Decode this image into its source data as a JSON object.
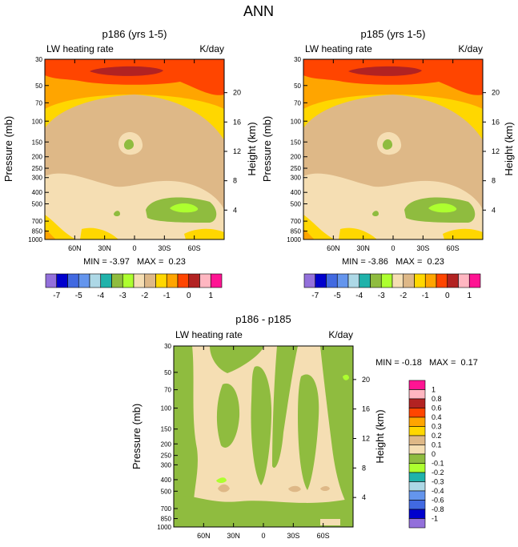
{
  "page_title": "ANN",
  "chart_data": [
    {
      "type": "heatmap",
      "title": "p186 (yrs 1-5)",
      "subtitle_left": "LW heating rate",
      "subtitle_right": "K/day",
      "ylabel": "Pressure (mb)",
      "y2label": "Height (km)",
      "x_ticks": [
        "60N",
        "30N",
        "0",
        "30S",
        "60S"
      ],
      "x_tick_values": [
        60,
        30,
        0,
        -30,
        -60
      ],
      "xlim": [
        90,
        -90
      ],
      "y_ticks": [
        "30",
        "50",
        "70",
        "100",
        "150",
        "200",
        "250",
        "300",
        "400",
        "500",
        "700",
        "850",
        "1000"
      ],
      "y_tick_values": [
        30,
        50,
        70,
        100,
        150,
        200,
        250,
        300,
        400,
        500,
        700,
        850,
        1000
      ],
      "ylim": [
        1000,
        30
      ],
      "height_ticks": [
        "20",
        "16",
        "12",
        "8",
        "4"
      ],
      "height_tick_values": [
        20,
        16,
        12,
        8,
        4
      ],
      "stats_text": "MIN = -3.97   MAX =  0.23",
      "min": -3.97,
      "max": 0.23
    },
    {
      "type": "heatmap",
      "title": "p185 (yrs 1-5)",
      "subtitle_left": "LW heating rate",
      "subtitle_right": "K/day",
      "ylabel": "Pressure (mb)",
      "y2label": "Height (km)",
      "x_ticks": [
        "60N",
        "30N",
        "0",
        "30S",
        "60S"
      ],
      "x_tick_values": [
        60,
        30,
        0,
        -30,
        -60
      ],
      "xlim": [
        90,
        -90
      ],
      "y_ticks": [
        "30",
        "50",
        "70",
        "100",
        "150",
        "200",
        "250",
        "300",
        "400",
        "500",
        "700",
        "850",
        "1000"
      ],
      "y_tick_values": [
        30,
        50,
        70,
        100,
        150,
        200,
        250,
        300,
        400,
        500,
        700,
        850,
        1000
      ],
      "ylim": [
        1000,
        30
      ],
      "height_ticks": [
        "20",
        "16",
        "12",
        "8",
        "4"
      ],
      "height_tick_values": [
        20,
        16,
        12,
        8,
        4
      ],
      "stats_text": "MIN = -3.86   MAX =  0.23",
      "min": -3.86,
      "max": 0.23
    },
    {
      "type": "heatmap",
      "title": "p186 - p185",
      "subtitle_left": "LW heating rate",
      "subtitle_right": "K/day",
      "ylabel": "Pressure (mb)",
      "y2label": "Height (km)",
      "x_ticks": [
        "60N",
        "30N",
        "0",
        "30S",
        "60S"
      ],
      "x_tick_values": [
        60,
        30,
        0,
        -30,
        -60
      ],
      "xlim": [
        90,
        -90
      ],
      "y_ticks": [
        "30",
        "50",
        "70",
        "100",
        "150",
        "200",
        "250",
        "300",
        "400",
        "500",
        "700",
        "850",
        "1000"
      ],
      "y_tick_values": [
        30,
        50,
        70,
        100,
        150,
        200,
        250,
        300,
        400,
        500,
        700,
        850,
        1000
      ],
      "ylim": [
        1000,
        30
      ],
      "height_ticks": [
        "20",
        "16",
        "12",
        "8",
        "4"
      ],
      "height_tick_values": [
        20,
        16,
        12,
        8,
        4
      ],
      "stats_text": "MIN = -0.18   MAX =  0.17",
      "min": -0.18,
      "max": 0.17
    }
  ],
  "colorbar_main": {
    "colors": [
      "#9370db",
      "#0000cd",
      "#4169e1",
      "#6495ed",
      "#add8e6",
      "#20b2aa",
      "#8fbc3f",
      "#adff2f",
      "#f5deb3",
      "#deb887",
      "#ffd700",
      "#ffa500",
      "#ff4500",
      "#b22222",
      "#ffb6c1",
      "#ff1493"
    ],
    "labels": [
      "-7",
      "-5",
      "-4",
      "-3",
      "-2",
      "-1",
      "0",
      "1"
    ]
  },
  "colorbar_diff": {
    "colors": [
      "#ff1493",
      "#ffb6c1",
      "#b22222",
      "#ff4500",
      "#ffa500",
      "#ffd700",
      "#deb887",
      "#f5deb3",
      "#8fbc3f",
      "#adff2f",
      "#20b2aa",
      "#add8e6",
      "#6495ed",
      "#4169e1",
      "#0000cd",
      "#9370db"
    ],
    "labels": [
      "1",
      "0.8",
      "0.6",
      "0.4",
      "0.3",
      "0.2",
      "0.1",
      "0",
      "-0.1",
      "-0.2",
      "-0.3",
      "-0.4",
      "-0.6",
      "-0.8",
      "-1"
    ]
  },
  "fill_colors": {
    "c1": "#ffa500",
    "c2": "#ff4500",
    "c3": "#b22222",
    "c4": "#ffd700",
    "c5": "#deb887",
    "c6": "#f5deb3",
    "c7": "#8fbc3f",
    "c8": "#adff2f"
  }
}
